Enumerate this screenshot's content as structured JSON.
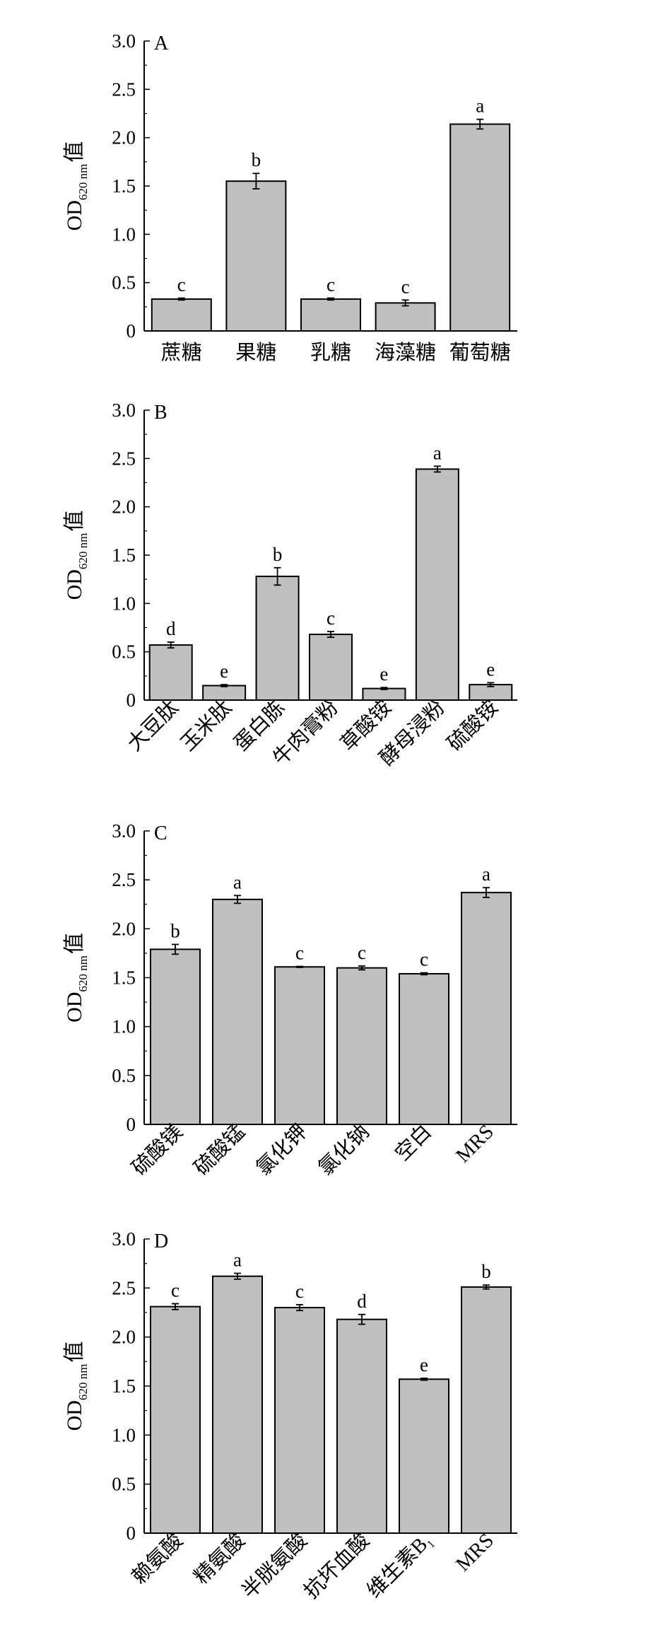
{
  "ylabel": {
    "main": "OD",
    "sub": "620 nm",
    "suffix": "值"
  },
  "colors": {
    "bar": "#c0c0c0",
    "stroke": "#000000"
  },
  "chart_data": [
    {
      "type": "bar",
      "panel": "A",
      "categories": [
        "蔗糖",
        "果糖",
        "乳糖",
        "海藻糖",
        "葡萄糖"
      ],
      "values": [
        0.33,
        1.55,
        0.33,
        0.29,
        2.14
      ],
      "errors": [
        0.01,
        0.08,
        0.01,
        0.03,
        0.05
      ],
      "labels": [
        "c",
        "b",
        "c",
        "c",
        "a"
      ],
      "ylim": [
        0,
        3.0
      ],
      "yticks": [
        "0",
        "0.5",
        "1.0",
        "1.5",
        "2.0",
        "2.5",
        "3.0"
      ],
      "rotated_labels": false
    },
    {
      "type": "bar",
      "panel": "B",
      "categories": [
        "大豆肽",
        "玉米肽",
        "蛋白胨",
        "牛肉膏粉",
        "草酸铵",
        "酵母浸粉",
        "硫酸铵"
      ],
      "values": [
        0.57,
        0.15,
        1.28,
        0.68,
        0.12,
        2.39,
        0.16
      ],
      "errors": [
        0.03,
        0.01,
        0.09,
        0.03,
        0.01,
        0.03,
        0.02
      ],
      "labels": [
        "d",
        "e",
        "b",
        "c",
        "e",
        "a",
        "e"
      ],
      "ylim": [
        0,
        3.0
      ],
      "yticks": [
        "0",
        "0.5",
        "1.0",
        "1.5",
        "2.0",
        "2.5",
        "3.0"
      ],
      "rotated_labels": true
    },
    {
      "type": "bar",
      "panel": "C",
      "categories": [
        "硫酸镁",
        "硫酸锰",
        "氯化钾",
        "氯化钠",
        "空白",
        "MRS"
      ],
      "values": [
        1.79,
        2.3,
        1.61,
        1.6,
        1.54,
        2.37
      ],
      "errors": [
        0.05,
        0.04,
        0.005,
        0.02,
        0.01,
        0.05
      ],
      "labels": [
        "b",
        "a",
        "c",
        "c",
        "c",
        "a"
      ],
      "ylim": [
        0,
        3.0
      ],
      "yticks": [
        "0",
        "0.5",
        "1.0",
        "1.5",
        "2.0",
        "2.5",
        "3.0"
      ],
      "rotated_labels": true
    },
    {
      "type": "bar",
      "panel": "D",
      "categories": [
        "赖氨酸",
        "精氨酸",
        "半胱氨酸",
        "抗坏血酸",
        "维生素B1",
        "MRS"
      ],
      "category_display": [
        {
          "main": "赖氨酸",
          "sub": ""
        },
        {
          "main": "精氨酸",
          "sub": ""
        },
        {
          "main": "半胱氨酸",
          "sub": ""
        },
        {
          "main": "抗坏血酸",
          "sub": ""
        },
        {
          "main": "维生素B",
          "sub": "1"
        },
        {
          "main": "MRS",
          "sub": ""
        }
      ],
      "values": [
        2.31,
        2.62,
        2.3,
        2.18,
        1.57,
        2.51
      ],
      "errors": [
        0.03,
        0.03,
        0.03,
        0.05,
        0.01,
        0.02
      ],
      "labels": [
        "c",
        "a",
        "c",
        "d",
        "e",
        "b"
      ],
      "ylim": [
        0,
        3.0
      ],
      "yticks": [
        "0",
        "0.5",
        "1.0",
        "1.5",
        "2.0",
        "2.5",
        "3.0"
      ],
      "rotated_labels": true
    }
  ]
}
